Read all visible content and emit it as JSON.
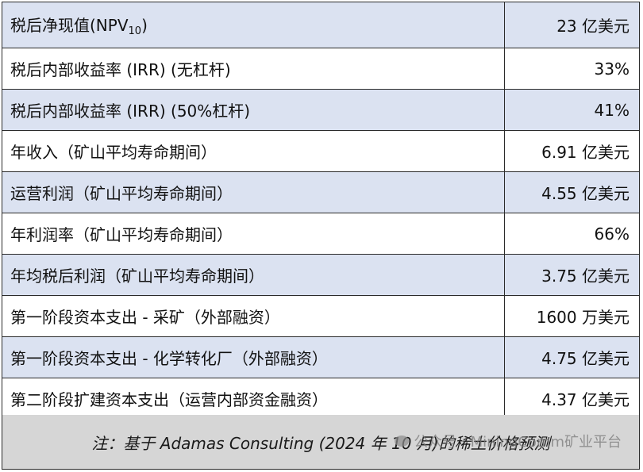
{
  "rows": [
    {
      "label_main": "税后净现值(NPV",
      "label_sub": "10",
      "label_end": ")",
      "value": "23 亿美元",
      "shaded": true
    },
    {
      "label": "税后内部收益率 (IRR) (无杠杆)",
      "value": "33%",
      "shaded": false
    },
    {
      "label": "税后内部收益率 (IRR) (50%杠杆)",
      "value": "41%",
      "shaded": true
    },
    {
      "label": "年收入（矿山平均寿命期间）",
      "value": "6.91 亿美元",
      "shaded": false
    },
    {
      "label": "运营利润（矿山平均寿命期间）",
      "value": "4.55 亿美元",
      "shaded": true
    },
    {
      "label": "年利润率（矿山平均寿命期间）",
      "value": "66%",
      "shaded": false
    },
    {
      "label": "年均税后利润（矿山平均寿命期间）",
      "value": "3.75 亿美元",
      "shaded": true
    },
    {
      "label": "第一阶段资本支出 - 采矿（外部融资）",
      "value": "1600 万美元",
      "shaded": false
    },
    {
      "label": "第一阶段资本支出 - 化学转化厂（外部融资）",
      "value": "4.75 亿美元",
      "shaded": true
    },
    {
      "label": "第二阶段扩建资本支出（运营内部资金融资）",
      "value": "4.37 亿美元",
      "shaded": false
    }
  ],
  "note": "注：基于 Adamas Consulting (2024 年 10 月)的稀土价格预测",
  "watermark": "公众号 · MiningComm矿业平台"
}
